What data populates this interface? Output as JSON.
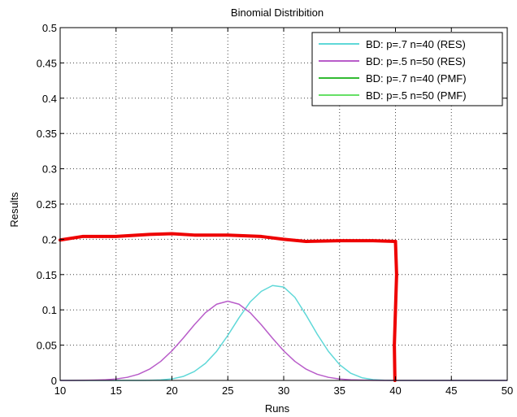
{
  "chart_data": {
    "type": "line",
    "title": "Binomial Distribition",
    "xlabel": "Runs",
    "ylabel": "Results",
    "xlim": [
      10,
      50
    ],
    "ylim": [
      0,
      0.5
    ],
    "x_ticks": [
      "10",
      "15",
      "20",
      "25",
      "30",
      "35",
      "40",
      "45",
      "50"
    ],
    "y_ticks": [
      "0",
      "0.05",
      "0.1",
      "0.15",
      "0.2",
      "0.25",
      "0.3",
      "0.35",
      "0.4",
      "0.45",
      "0.5"
    ],
    "grid": true,
    "legend_position": "top-right",
    "series": [
      {
        "name": "BD: p=.7 n=40 (RES)",
        "color": "#5fd8d8",
        "x": [
          10,
          11,
          12,
          13,
          14,
          15,
          16,
          17,
          18,
          19,
          20,
          21,
          22,
          23,
          24,
          25,
          26,
          27,
          28,
          29,
          30,
          31,
          32,
          33,
          34,
          35,
          36,
          37,
          38,
          39,
          40,
          41,
          42,
          43,
          44,
          45,
          46,
          47,
          48,
          49,
          50
        ],
        "values": [
          0,
          0,
          0,
          0,
          0,
          0,
          0,
          0,
          0.0002,
          0.0007,
          0.0021,
          0.0056,
          0.0126,
          0.0242,
          0.0412,
          0.0638,
          0.0888,
          0.1113,
          0.1263,
          0.1345,
          0.1324,
          0.1178,
          0.0927,
          0.0655,
          0.0412,
          0.0224,
          0.0101,
          0.0038,
          0.0012,
          0.0003,
          0,
          0,
          0,
          0,
          0,
          0,
          0,
          0,
          0,
          0,
          0
        ]
      },
      {
        "name": "BD: p=.5 n=50 (RES)",
        "color": "#b85cc9",
        "x": [
          10,
          11,
          12,
          13,
          14,
          15,
          16,
          17,
          18,
          19,
          20,
          21,
          22,
          23,
          24,
          25,
          26,
          27,
          28,
          29,
          30,
          31,
          32,
          33,
          34,
          35,
          36,
          37,
          38,
          39,
          40,
          41,
          42,
          43,
          44,
          45,
          46,
          47,
          48,
          49,
          50
        ],
        "values": [
          0,
          0,
          0.0001,
          0.0004,
          0.0009,
          0.002,
          0.0044,
          0.0087,
          0.016,
          0.027,
          0.0419,
          0.0598,
          0.0788,
          0.096,
          0.108,
          0.1123,
          0.108,
          0.096,
          0.0788,
          0.0598,
          0.0419,
          0.027,
          0.016,
          0.0087,
          0.0044,
          0.002,
          0.0009,
          0.0004,
          0.0001,
          0,
          0,
          0,
          0,
          0,
          0,
          0,
          0,
          0,
          0,
          0,
          0
        ]
      },
      {
        "name": "BD: p=.7 n=40 (PMF)",
        "color": "#33bb33",
        "x": [],
        "values": []
      },
      {
        "name": "BD: p=.5 n=50 (PMF)",
        "color": "#66e066",
        "x": [],
        "values": []
      }
    ],
    "annotations": [
      {
        "kind": "hand-drawn-line",
        "color": "#ee0000",
        "x": [
          10,
          12,
          15,
          18,
          20,
          22,
          25,
          28,
          30,
          32,
          35,
          38,
          40
        ],
        "values": [
          0.199,
          0.204,
          0.204,
          0.207,
          0.208,
          0.206,
          0.206,
          0.204,
          0.2,
          0.197,
          0.198,
          0.198,
          0.197
        ]
      },
      {
        "kind": "hand-drawn-line",
        "color": "#ee0000",
        "x": [
          40,
          40.1,
          40,
          39.9,
          39.95
        ],
        "values": [
          0.197,
          0.15,
          0.1,
          0.05,
          0
        ]
      }
    ]
  }
}
